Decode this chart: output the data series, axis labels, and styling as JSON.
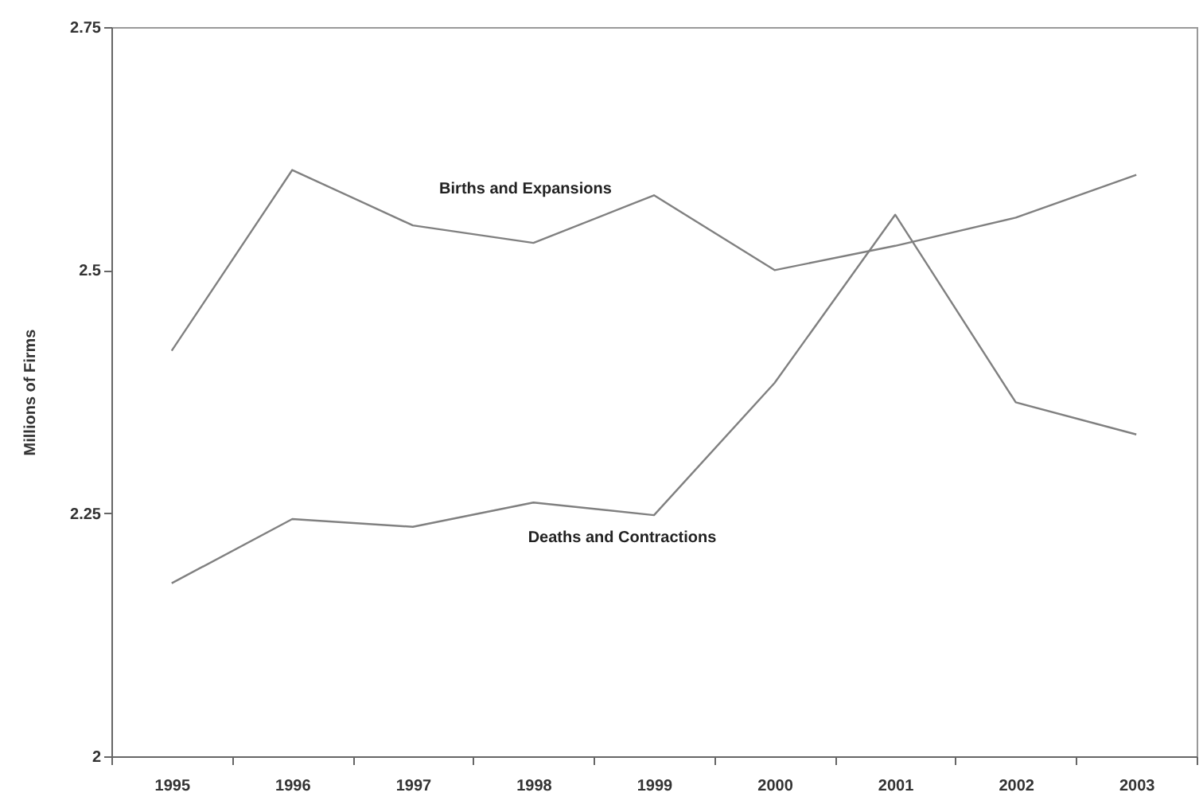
{
  "chart_data": {
    "type": "line",
    "ylabel": "Millions of Firms",
    "categories": [
      "1995",
      "1996",
      "1997",
      "1998",
      "1999",
      "2000",
      "2001",
      "2002",
      "2003"
    ],
    "series": [
      {
        "name": "Births and Expansions",
        "color": "#808080",
        "values": [
          2.417,
          2.603,
          2.546,
          2.528,
          2.577,
          2.5,
          2.525,
          2.554,
          2.598
        ]
      },
      {
        "name": "Deaths and Contractions",
        "color": "#808080",
        "values": [
          2.178,
          2.244,
          2.236,
          2.261,
          2.248,
          2.384,
          2.557,
          2.364,
          2.331
        ]
      }
    ],
    "ylim": [
      2,
      2.75
    ],
    "yticks": [
      2,
      2.25,
      2.5,
      2.75
    ],
    "grid": false,
    "legend": false,
    "marker": "none",
    "line_style": "solid"
  }
}
